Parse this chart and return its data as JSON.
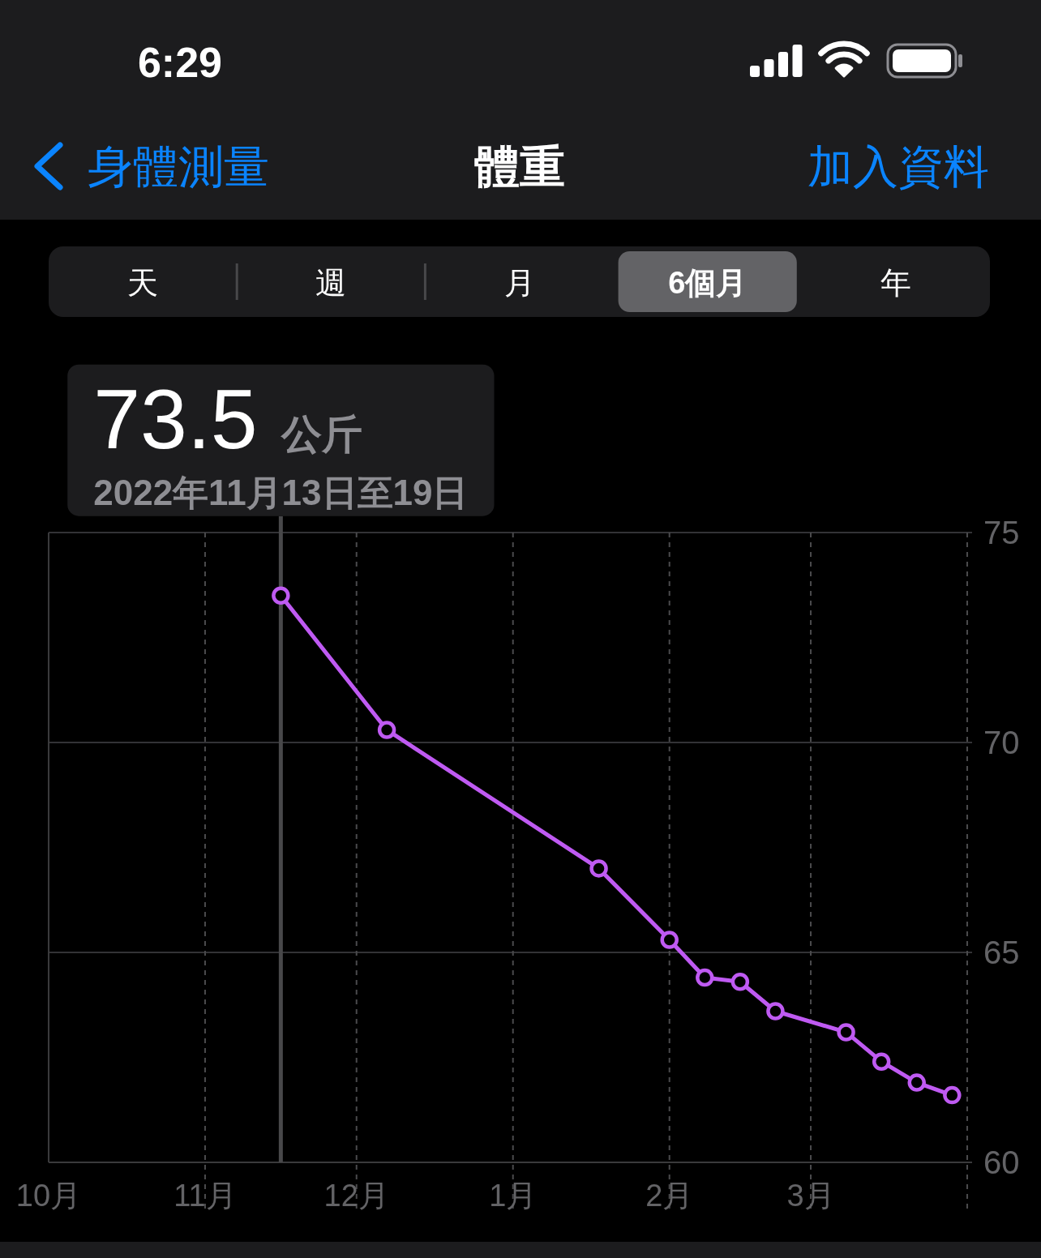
{
  "chart_data": {
    "type": "line",
    "title": "體重",
    "x": [
      "2022-11-16",
      "2022-12-07",
      "2023-01-18",
      "2023-02-01",
      "2023-02-08",
      "2023-02-15",
      "2023-02-22",
      "2023-03-08",
      "2023-03-15",
      "2023-03-22",
      "2023-03-29"
    ],
    "series": [
      {
        "color": "#bf5af2",
        "values": [
          73.5,
          70.3,
          67.0,
          65.3,
          64.4,
          64.3,
          63.6,
          63.1,
          62.4,
          61.9,
          61.6
        ]
      }
    ],
    "xlim": [
      "2022-10-01",
      "2023-04-01"
    ],
    "xticks": [
      {
        "value": "2022-10-01",
        "label": "10月"
      },
      {
        "value": "2022-11-01",
        "label": "11月"
      },
      {
        "value": "2022-12-01",
        "label": "12月"
      },
      {
        "value": "2023-01-01",
        "label": "1月"
      },
      {
        "value": "2023-02-01",
        "label": "2月"
      },
      {
        "value": "2023-03-01",
        "label": "3月"
      },
      {
        "value": "2023-04-01",
        "label": null
      }
    ],
    "ylim": [
      60,
      75
    ],
    "yticks": [
      60,
      65,
      70,
      75
    ],
    "grid": true,
    "marker": "circle",
    "line_style": "solid",
    "ref_lines": [
      {
        "axis": "x",
        "value": "2022-11-16",
        "color": "#48484a"
      }
    ],
    "annotations": [
      "6:29",
      "身體測量",
      "加入資料",
      "天",
      "週",
      "月",
      "6個月",
      "年",
      {
        "text": "73.5 公斤",
        "x": "2022-11-16",
        "y": 73.5
      },
      "2022年11月13日至19日"
    ]
  }
}
